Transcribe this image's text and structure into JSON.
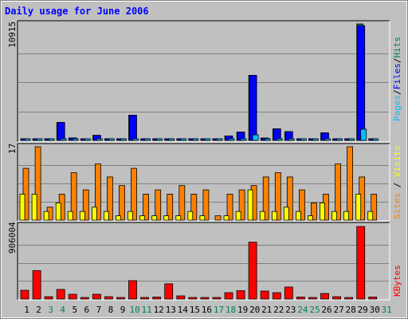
{
  "chart_data": [
    {
      "type": "bar",
      "title": "Daily usage for June 2006",
      "categories": [
        "1",
        "2",
        "3",
        "4",
        "5",
        "6",
        "7",
        "8",
        "9",
        "10",
        "11",
        "12",
        "13",
        "14",
        "15",
        "16",
        "17",
        "18",
        "19",
        "20",
        "21",
        "22",
        "23",
        "24",
        "25",
        "26",
        "27",
        "28",
        "29",
        "30",
        "31"
      ],
      "weekend_days": [
        "3",
        "4",
        "10",
        "11",
        "17",
        "18",
        "24",
        "25",
        "31"
      ],
      "ymax_label": "10915",
      "ylim": [
        0,
        10915
      ],
      "legend": [
        {
          "text": "Hits",
          "color": "#00805c"
        },
        {
          "text": "Files",
          "color": "#0000ff"
        },
        {
          "text": "Pages",
          "color": "#00c0ff"
        }
      ],
      "series": [
        {
          "name": "Hits",
          "color": "#00805c",
          "values": [
            40,
            40,
            120,
            1680,
            230,
            60,
            470,
            60,
            60,
            2360,
            60,
            60,
            60,
            60,
            60,
            60,
            60,
            420,
            780,
            6100,
            220,
            1080,
            820,
            140,
            60,
            700,
            130,
            60,
            10915,
            100,
            0
          ]
        },
        {
          "name": "Files",
          "color": "#0000ff",
          "values": [
            40,
            40,
            120,
            1680,
            230,
            60,
            470,
            60,
            60,
            2360,
            60,
            60,
            60,
            60,
            60,
            60,
            60,
            420,
            780,
            6100,
            220,
            1080,
            820,
            140,
            60,
            700,
            130,
            60,
            10750,
            100,
            0
          ]
        },
        {
          "name": "Pages",
          "color": "#00c0ff",
          "values": [
            5,
            5,
            10,
            90,
            20,
            5,
            30,
            5,
            5,
            110,
            5,
            5,
            5,
            5,
            5,
            5,
            5,
            25,
            60,
            520,
            15,
            80,
            60,
            10,
            5,
            50,
            10,
            5,
            1050,
            10,
            0
          ]
        }
      ]
    },
    {
      "type": "bar",
      "ymax_label": "17",
      "ylim": [
        0,
        17
      ],
      "legend": [
        {
          "text": "Visits",
          "color": "#ffff00"
        },
        {
          "text": "Sites",
          "color": "#ff8000"
        }
      ],
      "series": [
        {
          "name": "Visits",
          "color": "#ffff00",
          "values": [
            6,
            6,
            2,
            4,
            2,
            2,
            3,
            2,
            1,
            2,
            1,
            1,
            1,
            1,
            2,
            1,
            0,
            1,
            2,
            7,
            2,
            2,
            3,
            2,
            1,
            4,
            2,
            2,
            6,
            2,
            0
          ]
        },
        {
          "name": "Sites",
          "color": "#ff8000",
          "values": [
            12,
            17,
            3,
            6,
            11,
            7,
            13,
            10,
            8,
            12,
            6,
            7,
            6,
            8,
            6,
            7,
            1,
            6,
            7,
            8,
            10,
            11,
            10,
            7,
            4,
            6,
            13,
            17,
            10,
            6,
            0
          ]
        }
      ]
    },
    {
      "type": "bar",
      "ymax_label": "906004",
      "ylim": [
        0,
        906004
      ],
      "legend": [
        {
          "text": "KBytes",
          "color": "#ff0000"
        }
      ],
      "series": [
        {
          "name": "KBytes",
          "color": "#ff0000",
          "values": [
            110000,
            355000,
            30000,
            120000,
            60000,
            15000,
            60000,
            30000,
            15000,
            230000,
            15000,
            25000,
            190000,
            40000,
            15000,
            15000,
            15000,
            80000,
            105000,
            710000,
            100000,
            80000,
            150000,
            25000,
            15000,
            70000,
            30000,
            15000,
            906004,
            25000,
            0
          ]
        }
      ]
    }
  ]
}
